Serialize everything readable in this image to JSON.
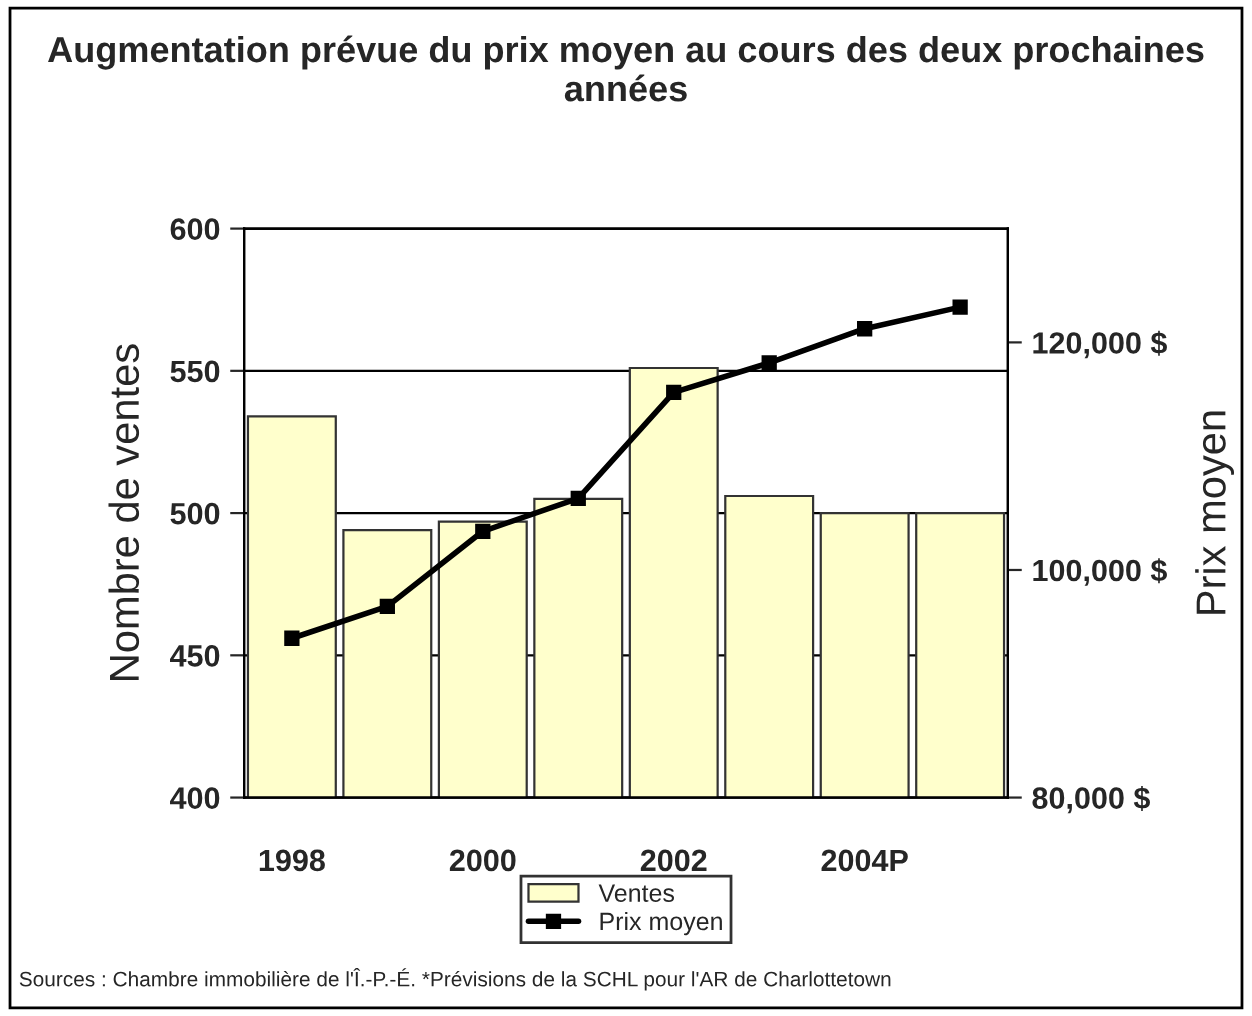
{
  "chart_data": {
    "type": "bar",
    "title": "Augmentation prévue du prix moyen au cours des deux prochaines années",
    "categories": [
      "1998",
      null,
      "2000",
      null,
      "2002",
      null,
      "2004P",
      null
    ],
    "series": [
      {
        "name": "Ventes",
        "color": "#ffffcc",
        "values": [
          534,
          494,
          497,
          505,
          551,
          506,
          500,
          500
        ]
      },
      {
        "name": "Prix moyen",
        "type": "line",
        "axis": "y2",
        "color": "#000000",
        "marker": "square",
        "values": [
          94000,
          96800,
          103400,
          106300,
          115600,
          118200,
          121200,
          123100
        ]
      }
    ],
    "ylabel": "Nombre de ventes",
    "y2label": "Prix moyen",
    "ylim": [
      400,
      600
    ],
    "yticks": [
      400,
      450,
      500,
      550,
      600
    ],
    "y2lim": [
      80000,
      130000
    ],
    "y2ticks": [
      {
        "value": 80000,
        "label": "80,000 $"
      },
      {
        "value": 100000,
        "label": "100,000 $"
      },
      {
        "value": 120000,
        "label": "120,000 $"
      }
    ],
    "grid": "y",
    "legend": "bottom",
    "annotations": [
      "Sources : Chambre immobilière de l'Î.-P.-É. *Prévisions de la SCHL pour l'AR de Charlottetown"
    ]
  }
}
